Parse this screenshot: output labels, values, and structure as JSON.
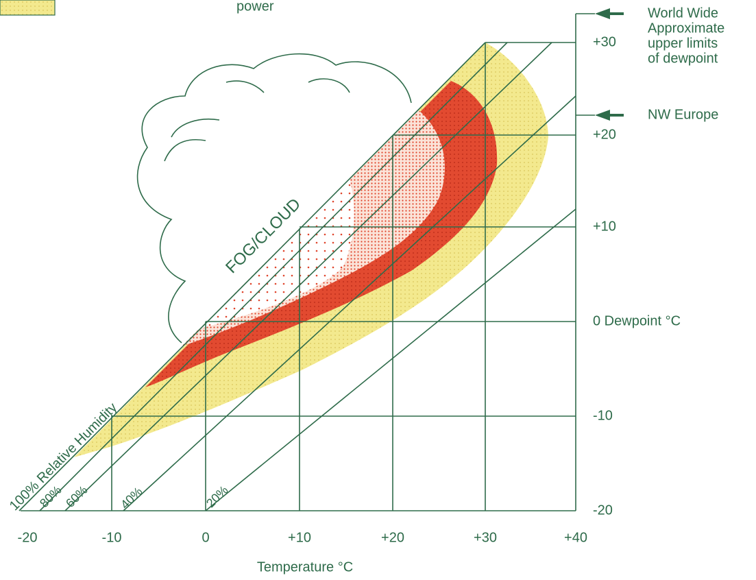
{
  "legend": {
    "label": "power"
  },
  "annotations": {
    "world_wide": [
      "World Wide",
      "Approximate",
      "upper limits",
      "of dewpoint"
    ],
    "nw_europe": "NW Europe",
    "fog": "FOG/CLOUD"
  },
  "y_axis": {
    "labels": [
      "+30",
      "+20",
      "+10",
      "0 Dewpoint °C",
      "-10",
      "-20"
    ]
  },
  "x_axis": {
    "labels": [
      "-20",
      "-10",
      "0",
      "+10",
      "+20",
      "+30",
      "+40"
    ],
    "title": "Temperature °C"
  },
  "humidity_lines": [
    "100% Relative Humidity",
    "80%",
    "60%",
    "40%",
    "20%"
  ]
}
